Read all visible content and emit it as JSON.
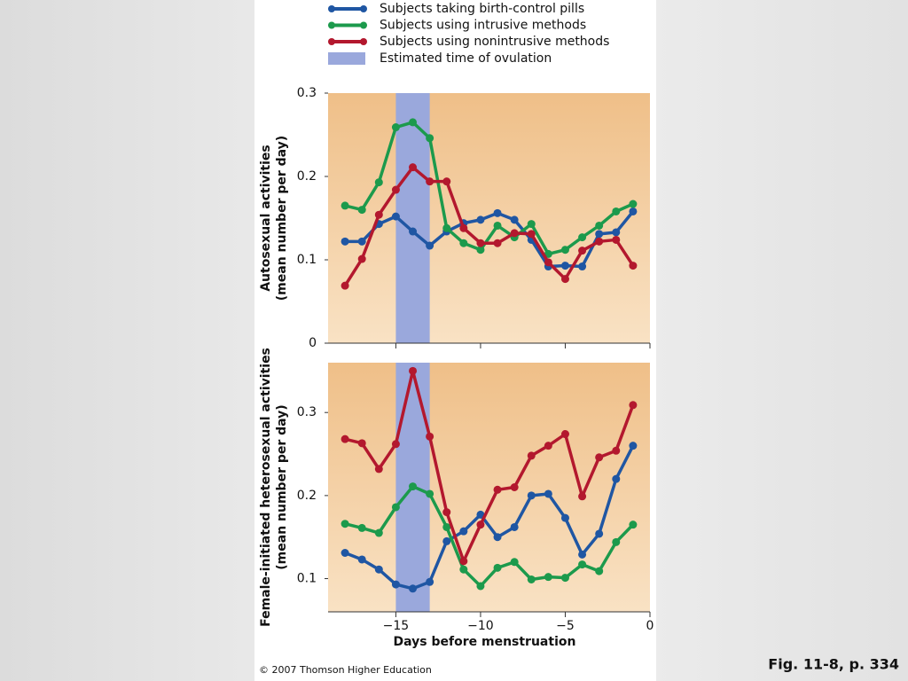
{
  "legend_band_label": "Estimated time of ovulation",
  "copyright": "© 2007 Thomson Higher Education",
  "caption": "Fig. 11-8, p. 334",
  "chart_data": [
    {
      "type": "line",
      "ylabel": [
        "Autosexual activities",
        "(mean number per day)"
      ],
      "x": [
        -18,
        -17,
        -16,
        -15,
        -14,
        -13,
        -12,
        -11,
        -10,
        -9,
        -8,
        -7,
        -6,
        -5,
        -4,
        -3,
        -2,
        -1
      ],
      "xlim": [
        -19,
        0
      ],
      "xticks": [
        -15,
        -10,
        -5,
        0
      ],
      "ylim": [
        0,
        0.3
      ],
      "yticks": [
        0,
        0.1,
        0.2,
        0.3
      ],
      "band": [
        -15,
        -13
      ],
      "band_color": "#9aa8dc",
      "series": [
        {
          "name": "Subjects taking birth-control pills",
          "color": "#1f56a3",
          "values": [
            0.122,
            0.122,
            0.143,
            0.152,
            0.134,
            0.117,
            0.134,
            0.144,
            0.148,
            0.156,
            0.148,
            0.124,
            0.092,
            0.093,
            0.092,
            0.131,
            0.133,
            0.158
          ]
        },
        {
          "name": "Subjects using intrusive methods",
          "color": "#1c9a4c",
          "values": [
            0.165,
            0.16,
            0.193,
            0.259,
            0.265,
            0.246,
            0.138,
            0.12,
            0.112,
            0.141,
            0.127,
            0.143,
            0.107,
            0.112,
            0.127,
            0.141,
            0.158,
            0.167
          ]
        },
        {
          "name": "Subjects using nonintrusive methods",
          "color": "#b3182e",
          "values": [
            0.069,
            0.101,
            0.154,
            0.184,
            0.211,
            0.194,
            0.194,
            0.138,
            0.12,
            0.12,
            0.132,
            0.131,
            0.097,
            0.077,
            0.111,
            0.122,
            0.124,
            0.093
          ]
        }
      ]
    },
    {
      "type": "line",
      "ylabel": [
        "Female-initiated heterosexual activities",
        "(mean number per day)"
      ],
      "xlabel": "Days before menstruation",
      "x": [
        -18,
        -17,
        -16,
        -15,
        -14,
        -13,
        -12,
        -11,
        -10,
        -9,
        -8,
        -7,
        -6,
        -5,
        -4,
        -3,
        -2,
        -1
      ],
      "xlim": [
        -19,
        0
      ],
      "xticks": [
        {
          "value": -15,
          "label": "−15"
        },
        {
          "value": -10,
          "label": "−10"
        },
        {
          "value": -5,
          "label": "−5"
        },
        0
      ],
      "ylim": [
        0.06,
        0.36
      ],
      "yticks": [
        0.1,
        0.2,
        0.3
      ],
      "band": [
        -15,
        -13
      ],
      "band_color": "#9aa8dc",
      "series": [
        {
          "color": "#1f56a3",
          "values": [
            0.131,
            0.123,
            0.111,
            0.093,
            0.088,
            0.096,
            0.145,
            0.157,
            0.177,
            0.15,
            0.162,
            0.2,
            0.202,
            0.173,
            0.129,
            0.154,
            0.22,
            0.26
          ]
        },
        {
          "color": "#1c9a4c",
          "values": [
            0.166,
            0.161,
            0.155,
            0.186,
            0.211,
            0.202,
            0.162,
            0.111,
            0.091,
            0.113,
            0.12,
            0.099,
            0.102,
            0.101,
            0.117,
            0.109,
            0.144,
            0.165
          ]
        },
        {
          "color": "#b3182e",
          "values": [
            0.268,
            0.263,
            0.232,
            0.262,
            0.35,
            0.271,
            0.18,
            0.121,
            0.165,
            0.207,
            0.21,
            0.248,
            0.26,
            0.274,
            0.199,
            0.246,
            0.254,
            0.309
          ]
        }
      ]
    }
  ]
}
